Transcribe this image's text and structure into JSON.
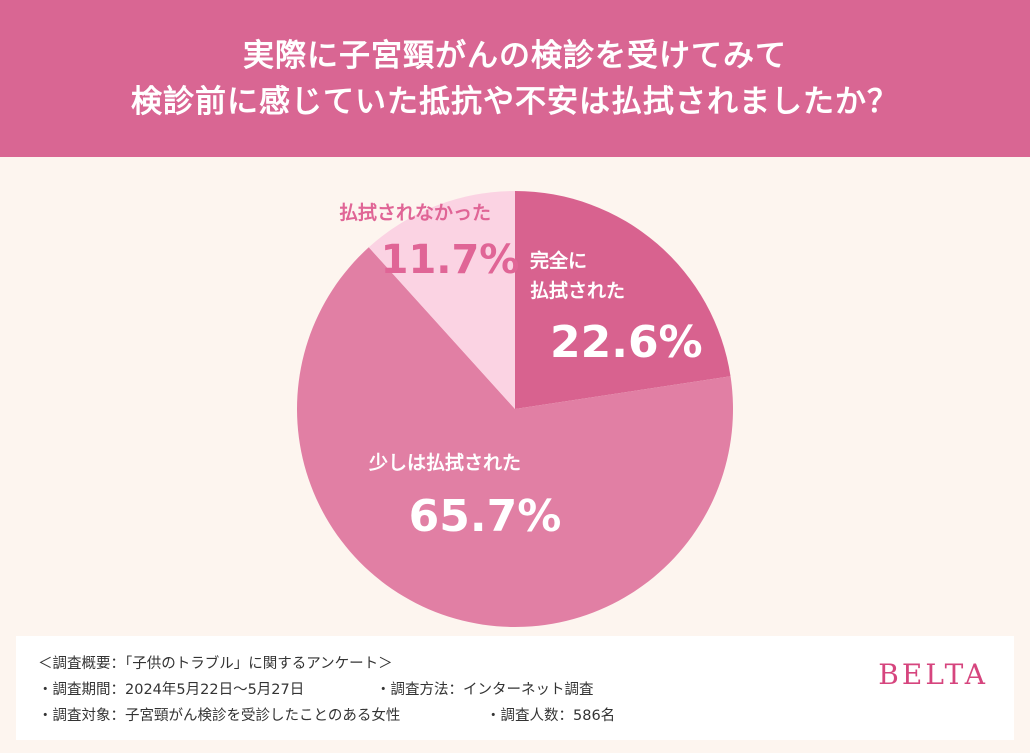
{
  "title": {
    "line1": "実際に子宮頸がんの検診を受けてみて",
    "line2": "検診前に感じていた抵抗や不安は払拭されましたか？"
  },
  "chart_data": {
    "type": "pie",
    "slices": [
      {
        "label_lines": [
          "完全に",
          "払拭された"
        ],
        "value": 22.6,
        "value_text": "22.6%",
        "color": "#d8628f",
        "text_color": "#ffffff"
      },
      {
        "label_lines": [
          "少しは払拭された"
        ],
        "value": 65.7,
        "value_text": "65.7%",
        "color": "#e17fa4",
        "text_color": "#ffffff"
      },
      {
        "label_lines": [
          "払拭されなかった"
        ],
        "value": 11.7,
        "value_text": "11.7%",
        "color": "#fbd3e3",
        "text_color": "#e06596"
      }
    ]
  },
  "footer": {
    "summary": "＜調査概要：「子供のトラブル」に関するアンケート＞",
    "period": "・調査期間：2024年5月22日〜5月27日",
    "method": "・調査方法：インターネット調査",
    "target": "・調査対象：子宮頸がん検診を受診したことのある女性",
    "count": "・調査人数：586名",
    "logo": "BELTA"
  }
}
